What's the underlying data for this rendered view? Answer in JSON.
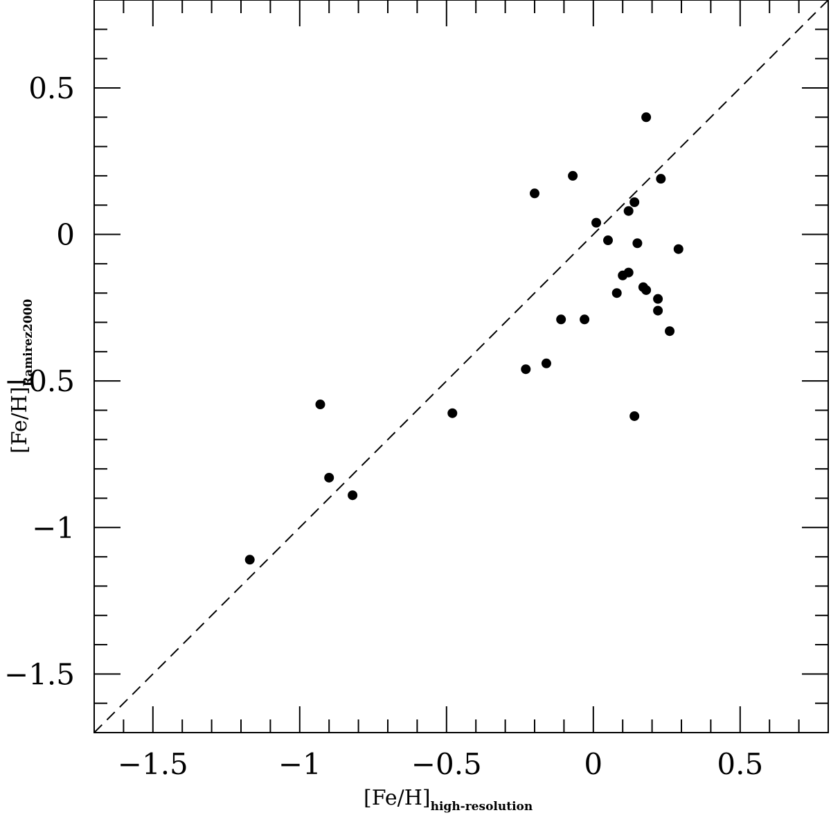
{
  "chart_data": {
    "type": "scatter",
    "xlabel": "[Fe/H]",
    "xlabel_subscript": "high-resolution",
    "ylabel": "[Fe/H]",
    "ylabel_subscript": "Ramirez2000",
    "xlim": [
      -1.7,
      0.8
    ],
    "ylim": [
      -1.7,
      0.8
    ],
    "x_ticks": [
      {
        "value": -1.5,
        "label": "−1.5"
      },
      {
        "value": -1.0,
        "label": "−1"
      },
      {
        "value": -0.5,
        "label": "−0.5"
      },
      {
        "value": 0.0,
        "label": "0"
      },
      {
        "value": 0.5,
        "label": "0.5"
      }
    ],
    "y_ticks": [
      {
        "value": 0.5,
        "label": "0.5"
      },
      {
        "value": 0.0,
        "label": "0"
      },
      {
        "value": -0.5,
        "label": "−0.5"
      },
      {
        "value": -1.0,
        "label": "−1"
      },
      {
        "value": -1.5,
        "label": "−1.5"
      }
    ],
    "minor_tick_step": 0.1,
    "grid": false,
    "reference_line": {
      "style": "dashed",
      "from": [
        -1.7,
        -1.7
      ],
      "to": [
        0.8,
        0.8
      ]
    },
    "points": [
      {
        "x": 0.18,
        "y": 0.4
      },
      {
        "x": -0.07,
        "y": 0.2
      },
      {
        "x": 0.23,
        "y": 0.19
      },
      {
        "x": -0.2,
        "y": 0.14
      },
      {
        "x": 0.14,
        "y": 0.11
      },
      {
        "x": 0.12,
        "y": 0.08
      },
      {
        "x": 0.01,
        "y": 0.04
      },
      {
        "x": 0.05,
        "y": -0.02
      },
      {
        "x": 0.15,
        "y": -0.03
      },
      {
        "x": 0.29,
        "y": -0.05
      },
      {
        "x": 0.12,
        "y": -0.13
      },
      {
        "x": 0.1,
        "y": -0.14
      },
      {
        "x": 0.17,
        "y": -0.18
      },
      {
        "x": 0.18,
        "y": -0.19
      },
      {
        "x": 0.08,
        "y": -0.2
      },
      {
        "x": 0.22,
        "y": -0.22
      },
      {
        "x": 0.22,
        "y": -0.26
      },
      {
        "x": -0.03,
        "y": -0.29
      },
      {
        "x": -0.11,
        "y": -0.29
      },
      {
        "x": 0.26,
        "y": -0.33
      },
      {
        "x": -0.16,
        "y": -0.44
      },
      {
        "x": -0.23,
        "y": -0.46
      },
      {
        "x": -0.48,
        "y": -0.61
      },
      {
        "x": -0.93,
        "y": -0.58
      },
      {
        "x": 0.14,
        "y": -0.62
      },
      {
        "x": -0.9,
        "y": -0.83
      },
      {
        "x": -0.82,
        "y": -0.89
      },
      {
        "x": -1.17,
        "y": -1.11
      }
    ],
    "marker_color": "#000000",
    "line_color": "#000000"
  }
}
